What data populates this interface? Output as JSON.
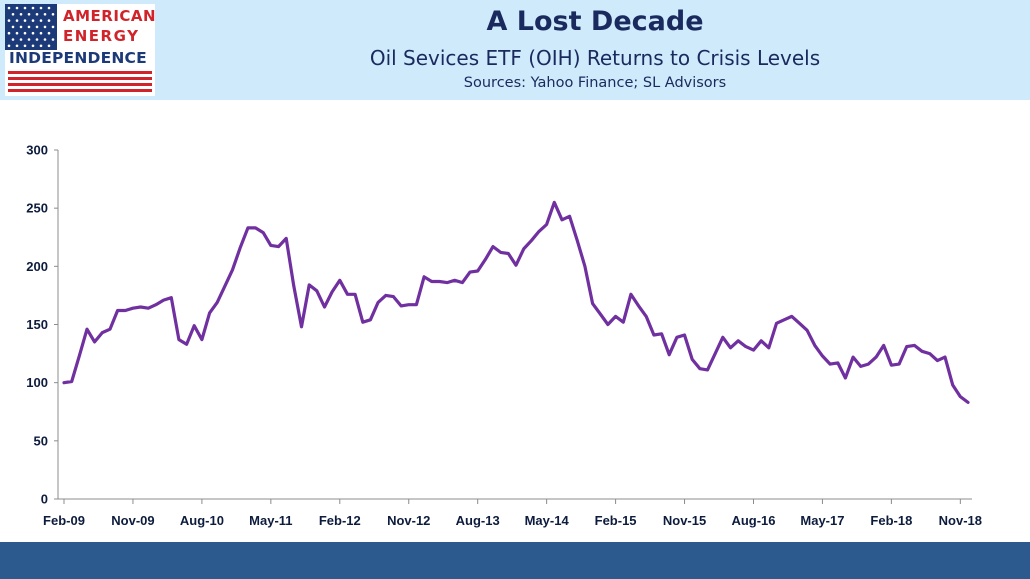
{
  "header": {
    "logo_line1": "AMERICAN",
    "logo_line2": "ENERGY",
    "logo_line3": "INDEPENDENCE",
    "title": "A Lost Decade",
    "subtitle": "Oil Sevices ETF (OIH) Returns to Crisis Levels",
    "source": "Sources: Yahoo Finance; SL Advisors"
  },
  "colors": {
    "header_band": "#cfeafa",
    "footer_band": "#2d5a8e",
    "line": "#7030a0",
    "logo_red": "#d0232a",
    "logo_blue": "#1d3a78",
    "title_text": "#1a2a5e"
  },
  "chart_data": {
    "type": "line",
    "title": "",
    "xlabel": "",
    "ylabel": "",
    "ylim": [
      0,
      300
    ],
    "yticks": [
      "0",
      "50",
      "100",
      "150",
      "200",
      "250",
      "300"
    ],
    "xticks": [
      "Feb-09",
      "Nov-09",
      "Aug-10",
      "May-11",
      "Feb-12",
      "Nov-12",
      "Aug-13",
      "May-14",
      "Feb-15",
      "Nov-15",
      "Aug-16",
      "May-17",
      "Feb-18",
      "Nov-18"
    ],
    "grid": false,
    "legend": "none",
    "series": [
      {
        "values": [
          100,
          101,
          123,
          146,
          135,
          143,
          146,
          162,
          162,
          164,
          165,
          164,
          167,
          171,
          173,
          137,
          133,
          149,
          137,
          160,
          169,
          183,
          197,
          216,
          233,
          233,
          229,
          218,
          217,
          224,
          183,
          148,
          184,
          179,
          165,
          178,
          188,
          176,
          176,
          152,
          154,
          169,
          175,
          174,
          166,
          167,
          167,
          191,
          187,
          187,
          186,
          188,
          186,
          195,
          196,
          206,
          217,
          212,
          211,
          201,
          215,
          222,
          230,
          236,
          255,
          240,
          243,
          222,
          200,
          168,
          159,
          150,
          157,
          152,
          176,
          166,
          157,
          141,
          142,
          124,
          139,
          141,
          120,
          112,
          111,
          125,
          139,
          130,
          136,
          131,
          128,
          136,
          130,
          151,
          154,
          157,
          151,
          145,
          132,
          123,
          116,
          117,
          104,
          122,
          114,
          116,
          122,
          132,
          115,
          116,
          131,
          132,
          127,
          125,
          119,
          122,
          98,
          88,
          83
        ]
      }
    ]
  }
}
